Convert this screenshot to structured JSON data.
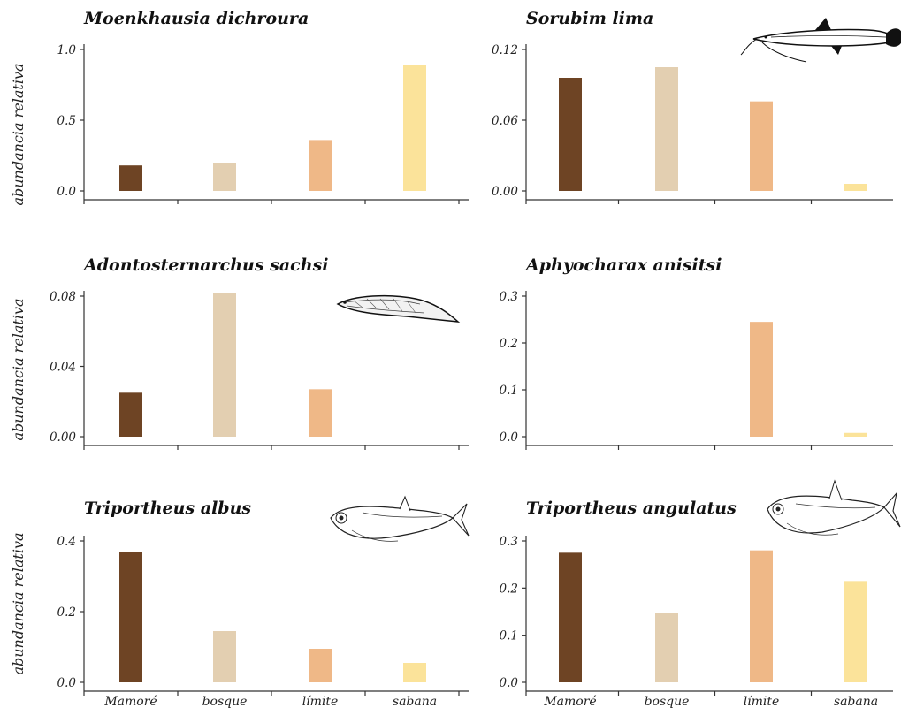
{
  "figure": {
    "ylabel": "abundancia relativa",
    "categories": [
      "Mamoré",
      "bosque",
      "límite",
      "sabana"
    ],
    "colors": {
      "Mamoré": "#6e4424",
      "bosque": "#e3cfb1",
      "límite": "#efb887",
      "sabana": "#fbe39a"
    }
  },
  "chart_data": [
    {
      "type": "bar",
      "title": "Moenkhausia dichroura",
      "ylabel": "abundancia relativa",
      "categories": [
        "Mamoré",
        "bosque",
        "límite",
        "sabana"
      ],
      "values": [
        0.18,
        0.2,
        0.36,
        0.89
      ],
      "ylim": [
        0,
        1.0
      ],
      "yticks": [
        0.0,
        0.5,
        1.0
      ],
      "yticklabels": [
        "0.0",
        "0.5",
        "1.0"
      ],
      "fish_illustration": null
    },
    {
      "type": "bar",
      "title": "Sorubim lima",
      "ylabel": "",
      "categories": [
        "Mamoré",
        "bosque",
        "límite",
        "sabana"
      ],
      "values": [
        0.096,
        0.105,
        0.076,
        0.006
      ],
      "ylim": [
        0,
        0.12
      ],
      "yticks": [
        0.0,
        0.06,
        0.12
      ],
      "yticklabels": [
        "0.00",
        "0.06",
        "0.12"
      ],
      "fish_illustration": "catfish-icon"
    },
    {
      "type": "bar",
      "title": "Adontosternarchus sachsi",
      "ylabel": "abundancia relativa",
      "categories": [
        "Mamoré",
        "bosque",
        "límite",
        "sabana"
      ],
      "values": [
        0.025,
        0.082,
        0.027,
        0.0
      ],
      "ylim": [
        0,
        0.09
      ],
      "yticks": [
        0.0,
        0.04,
        0.08
      ],
      "yticklabels": [
        "0.00",
        "0.04",
        "0.08"
      ],
      "fish_illustration": "knifefish-icon"
    },
    {
      "type": "bar",
      "title": "Aphyocharax anisitsi",
      "ylabel": "",
      "categories": [
        "Mamoré",
        "bosque",
        "límite",
        "sabana"
      ],
      "values": [
        0.0,
        0.0,
        0.245,
        0.008
      ],
      "ylim": [
        0,
        0.3
      ],
      "yticks": [
        0.0,
        0.1,
        0.2,
        0.3
      ],
      "yticklabels": [
        "0.0",
        "0.1",
        "0.2",
        "0.3"
      ],
      "fish_illustration": null
    },
    {
      "type": "bar",
      "title": "Triportheus albus",
      "ylabel": "abundancia relativa",
      "categories": [
        "Mamoré",
        "bosque",
        "límite",
        "sabana"
      ],
      "values": [
        0.37,
        0.145,
        0.095,
        0.055
      ],
      "ylim": [
        0,
        0.4
      ],
      "yticks": [
        0.0,
        0.2,
        0.4
      ],
      "yticklabels": [
        "0.0",
        "0.2",
        "0.4"
      ],
      "fish_illustration": "triportheus-icon"
    },
    {
      "type": "bar",
      "title": "Triportheus angulatus",
      "ylabel": "",
      "categories": [
        "Mamoré",
        "bosque",
        "límite",
        "sabana"
      ],
      "values": [
        0.275,
        0.147,
        0.28,
        0.215
      ],
      "ylim": [
        0,
        0.3
      ],
      "yticks": [
        0.0,
        0.1,
        0.2,
        0.3
      ],
      "yticklabels": [
        "0.0",
        "0.1",
        "0.2",
        "0.3"
      ],
      "fish_illustration": "triportheus-icon"
    }
  ]
}
